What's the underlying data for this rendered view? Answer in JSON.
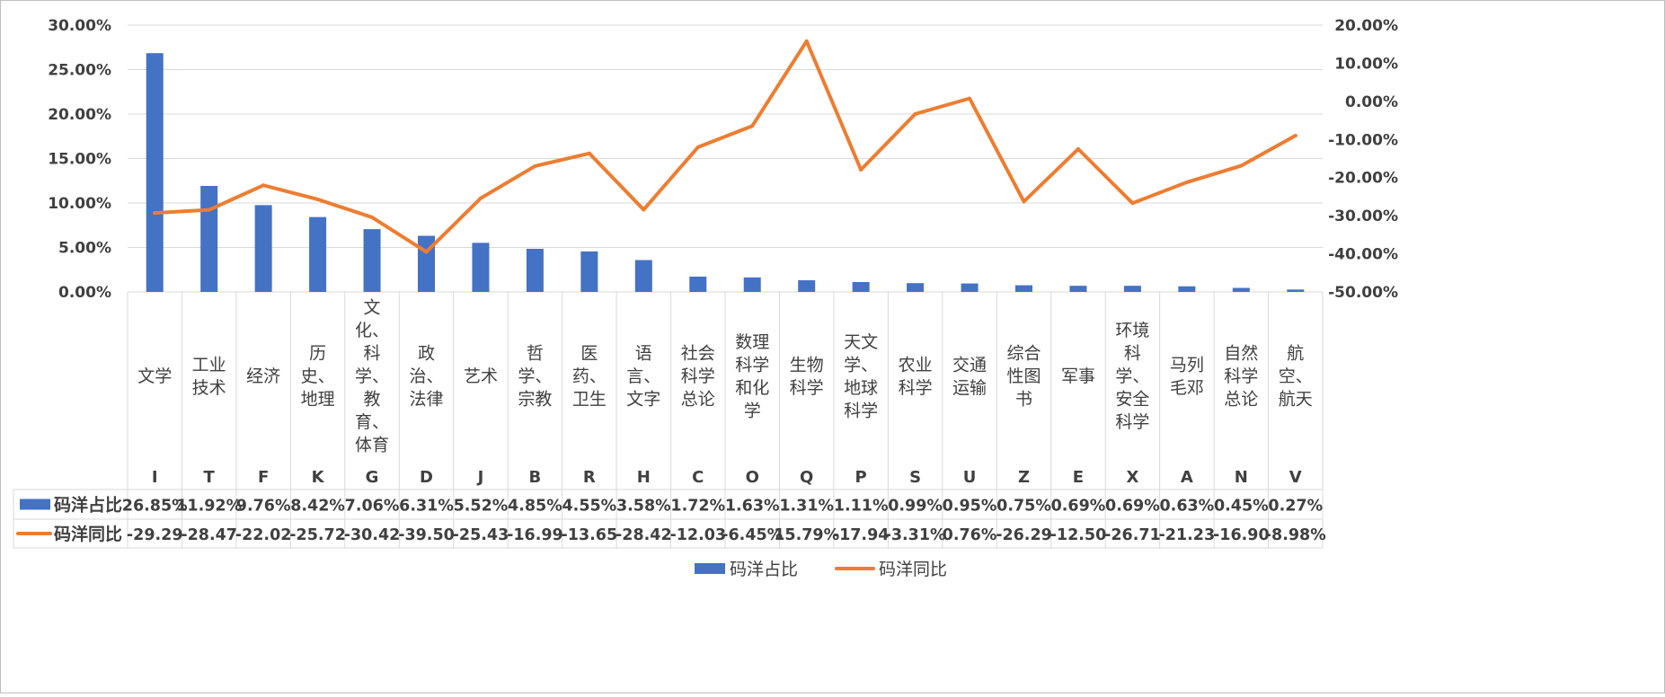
{
  "chart_data": {
    "type": "bar",
    "title": "",
    "xlabel": "",
    "ylabel": "",
    "categories": [
      {
        "name": "文学",
        "code": "I"
      },
      {
        "name": "工业技术",
        "code": "T"
      },
      {
        "name": "经济",
        "code": "F"
      },
      {
        "name": "历史、地理",
        "code": "K"
      },
      {
        "name": "文化、科学、教育、体育",
        "code": "G"
      },
      {
        "name": "政治、法律",
        "code": "D"
      },
      {
        "name": "艺术",
        "code": "J"
      },
      {
        "name": "哲学、宗教",
        "code": "B"
      },
      {
        "name": "医药、卫生",
        "code": "R"
      },
      {
        "name": "语言、文字",
        "code": "H"
      },
      {
        "name": "社会科学总论",
        "code": "C"
      },
      {
        "name": "数理科学和化学",
        "code": "O"
      },
      {
        "name": "生物科学",
        "code": "Q"
      },
      {
        "name": "天文学、地球科学",
        "code": "P"
      },
      {
        "name": "农业科学",
        "code": "S"
      },
      {
        "name": "交通运输",
        "code": "U"
      },
      {
        "name": "综合性图书",
        "code": "Z"
      },
      {
        "name": "军事",
        "code": "E"
      },
      {
        "name": "环境科学、安全科学",
        "code": "X"
      },
      {
        "name": "马列毛邓",
        "code": "A"
      },
      {
        "name": "自然科学总论",
        "code": "N"
      },
      {
        "name": "航空、航天",
        "code": "V"
      }
    ],
    "category_lines": [
      [
        "文学"
      ],
      [
        "工业",
        "技术"
      ],
      [
        "经济"
      ],
      [
        "历",
        "史、",
        "地理"
      ],
      [
        "文",
        "化、",
        "科",
        "学、",
        "教",
        "育、",
        "体育"
      ],
      [
        "政",
        "治、",
        "法律"
      ],
      [
        "艺术"
      ],
      [
        "哲",
        "学、",
        "宗教"
      ],
      [
        "医",
        "药、",
        "卫生"
      ],
      [
        "语",
        "言、",
        "文字"
      ],
      [
        "社会",
        "科学",
        "总论"
      ],
      [
        "数理",
        "科学",
        "和化",
        "学"
      ],
      [
        "生物",
        "科学"
      ],
      [
        "天文",
        "学、",
        "地球",
        "科学"
      ],
      [
        "农业",
        "科学"
      ],
      [
        "交通",
        "运输"
      ],
      [
        "综合",
        "性图",
        "书"
      ],
      [
        "军事"
      ],
      [
        "环境",
        "科",
        "学、",
        "安全",
        "科学"
      ],
      [
        "马列",
        "毛邓"
      ],
      [
        "自然",
        "科学",
        "总论"
      ],
      [
        "航",
        "空、",
        "航天"
      ]
    ],
    "series": [
      {
        "name": "码洋占比",
        "type": "bar",
        "axis": "left",
        "color": "#4472C4",
        "values": [
          26.85,
          11.92,
          9.76,
          8.42,
          7.06,
          6.31,
          5.52,
          4.85,
          4.55,
          3.58,
          1.72,
          1.63,
          1.31,
          1.11,
          0.99,
          0.95,
          0.75,
          0.69,
          0.69,
          0.63,
          0.45,
          0.27
        ],
        "labels": [
          "26.85%",
          "11.92%",
          "9.76%",
          "8.42%",
          "7.06%",
          "6.31%",
          "5.52%",
          "4.85%",
          "4.55%",
          "3.58%",
          "1.72%",
          "1.63%",
          "1.31%",
          "1.11%",
          "0.99%",
          "0.95%",
          "0.75%",
          "0.69%",
          "0.69%",
          "0.63%",
          "0.45%",
          "0.27%"
        ]
      },
      {
        "name": "码洋同比",
        "type": "line",
        "axis": "right",
        "color": "#ED7D31",
        "values": [
          -29.29,
          -28.47,
          -22.02,
          -25.72,
          -30.42,
          -39.5,
          -25.43,
          -16.99,
          -13.65,
          -28.42,
          -12.03,
          -6.45,
          15.79,
          -17.94,
          -3.31,
          0.76,
          -26.29,
          -12.5,
          -26.71,
          -21.23,
          -16.9,
          -8.98
        ],
        "labels": [
          "-29.29",
          "-28.47",
          "-22.02",
          "-25.72",
          "-30.42",
          "-39.50",
          "-25.43",
          "-16.99",
          "-13.65",
          "-28.42",
          "-12.03",
          "-6.45%",
          "15.79%",
          "-17.94",
          "-3.31%",
          "0.76%",
          "-26.29",
          "-12.50",
          "-26.71",
          "-21.23",
          "-16.90",
          "-8.98%"
        ]
      }
    ],
    "y_left": {
      "range": [
        0,
        30
      ],
      "ticks": [
        0,
        5,
        10,
        15,
        20,
        25,
        30
      ],
      "tick_labels": [
        "0.00%",
        "5.00%",
        "10.00%",
        "15.00%",
        "20.00%",
        "25.00%",
        "30.00%"
      ]
    },
    "y_right": {
      "range": [
        -50,
        20
      ],
      "ticks": [
        -50,
        -40,
        -30,
        -20,
        -10,
        0,
        10,
        20
      ],
      "tick_labels": [
        "-50.00%",
        "-40.00%",
        "-30.00%",
        "-20.00%",
        "-10.00%",
        "0.00%",
        "10.00%",
        "20.00%"
      ]
    },
    "grid": true,
    "data_table": true,
    "legend": {
      "position": "bottom",
      "items": [
        "码洋占比",
        "码洋同比"
      ]
    }
  },
  "colors": {
    "bar": "#4472C4",
    "line": "#ED7D31",
    "grid": "#D9D9D9",
    "text": "#404040",
    "border": "#BFBFBF"
  }
}
